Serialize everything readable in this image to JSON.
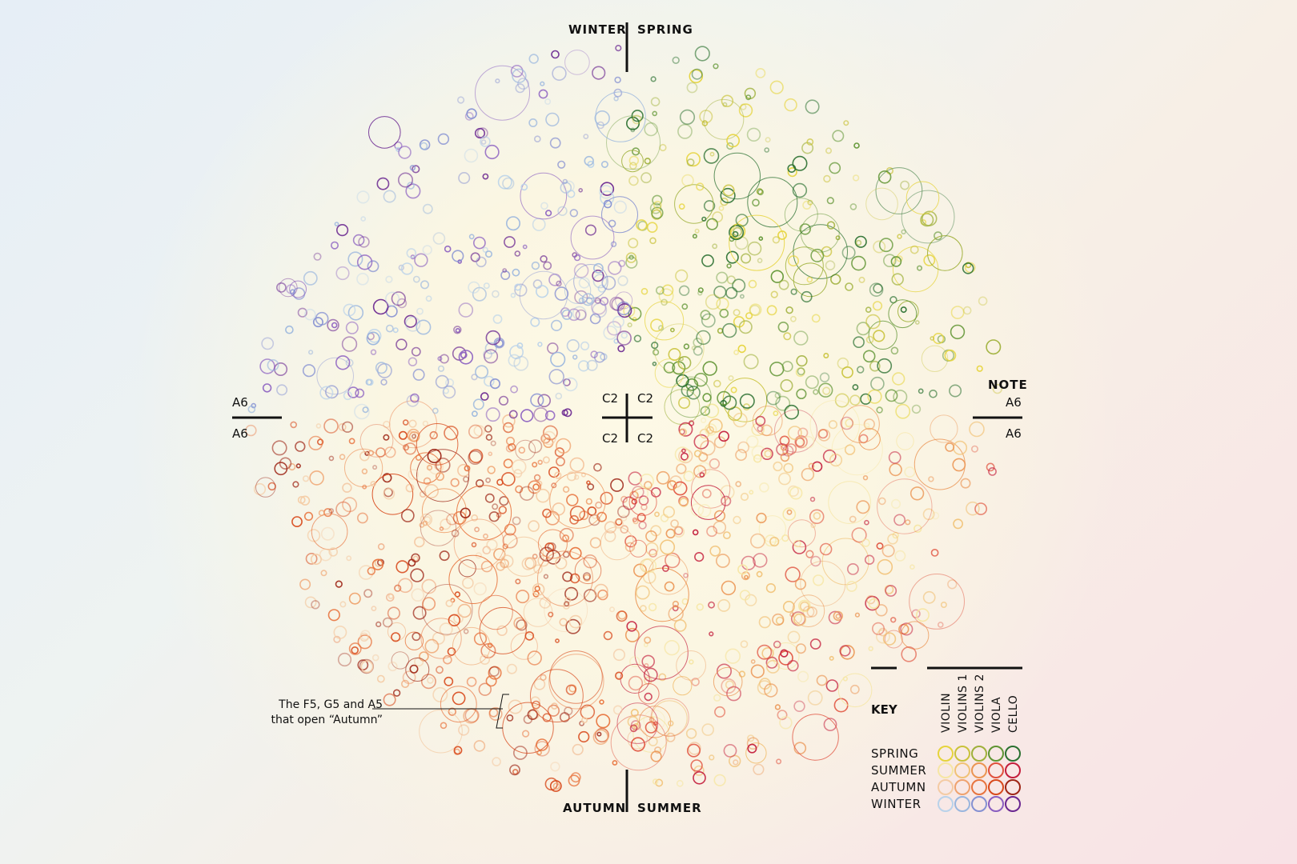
{
  "chart_data": {
    "type": "scatter",
    "projection": "polar",
    "angular_axis": {
      "quadrants": [
        "SPRING",
        "SUMMER",
        "AUTUMN",
        "WINTER"
      ],
      "top_labels": [
        "WINTER",
        "SPRING"
      ],
      "bottom_labels": [
        "AUTUMN",
        "SUMMER"
      ]
    },
    "radial_axis": {
      "label": "NOTE",
      "min": "C2",
      "max": "A6",
      "center_labels": [
        "C2",
        "C2",
        "C2",
        "C2"
      ],
      "edge_labels": {
        "left_top": "A6",
        "left_bottom": "A6",
        "right_top": "A6",
        "right_bottom": "A6"
      }
    },
    "annotation": {
      "line1": "The F5, G5 and A5",
      "line2": "that open “Autumn”"
    },
    "legend": {
      "title": "KEY",
      "instruments": [
        "VIOLIN",
        "VIOLINS 1",
        "VIOLINS 2",
        "VIOLA",
        "CELLO"
      ],
      "seasons": [
        {
          "name": "SPRING",
          "colors": [
            "#e6d43c",
            "#c9c23a",
            "#9fb03a",
            "#5f9432",
            "#2a7030"
          ]
        },
        {
          "name": "SUMMER",
          "colors": [
            "#f6e6a4",
            "#f1c277",
            "#eb9452",
            "#e0503c",
            "#c41e3c"
          ]
        },
        {
          "name": "AUTUMN",
          "colors": [
            "#f4cba4",
            "#efa26e",
            "#e8743e",
            "#d84a1c",
            "#9e2616"
          ]
        },
        {
          "name": "WINTER",
          "colors": [
            "#b9d2ea",
            "#9ab6de",
            "#8590d2",
            "#8a5ec0",
            "#6a2690"
          ]
        }
      ]
    }
  }
}
